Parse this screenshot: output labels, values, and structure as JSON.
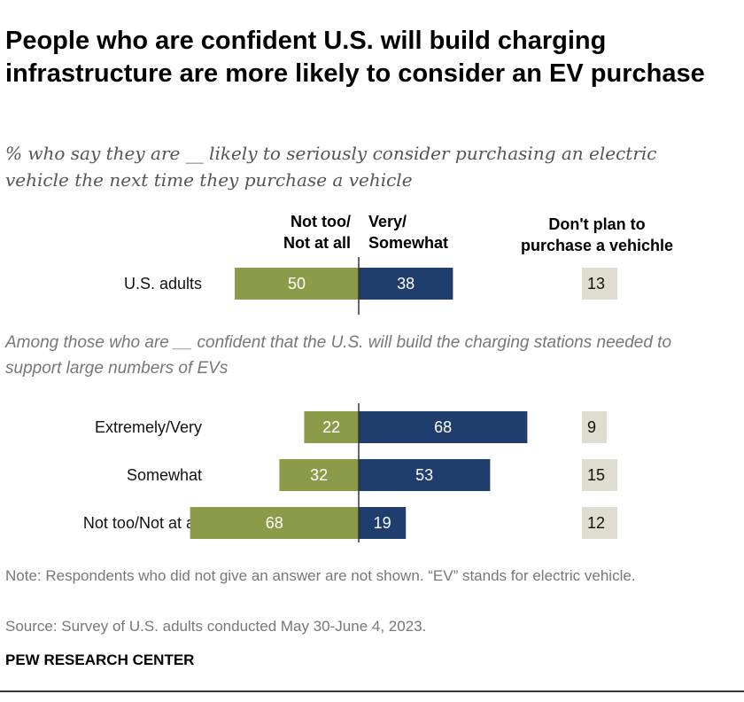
{
  "title": "People who are confident U.S. will build charging infrastructure are more likely to consider an EV purchase",
  "subtitle": "% who say they are __ likely to seriously consider purchasing an electric vehicle the next time they purchase a vehicle",
  "columns": {
    "left_line1": "Not too/",
    "left_line2": "Not at all",
    "right_line1": "Very/",
    "right_line2": "Somewhat",
    "np_line1": "Don't plan to",
    "np_line2": "purchase a vehichle"
  },
  "section_label": "Among those who are __ confident that the U.S. will build the charging stations needed to support large numbers of EVs",
  "note": "Note: Respondents who did not give an answer are not shown. “EV” stands for electric vehicle.",
  "source": "Source: Survey of U.S. adults conducted May 30-June 4, 2023.",
  "brand": "PEW RESEARCH CENTER",
  "colors": {
    "left": "#8c9b4a",
    "right": "#1f3e6e",
    "np": "#deddcf"
  },
  "chart_data": {
    "type": "bar",
    "orientation": "horizontal-diverging",
    "categories": [
      "U.S. adults",
      "Extremely/Very",
      "Somewhat",
      "Not too/Not at all"
    ],
    "series": [
      {
        "name": "Not too/ Not at all",
        "values": [
          50,
          22,
          32,
          68
        ]
      },
      {
        "name": "Very/ Somewhat",
        "values": [
          38,
          68,
          53,
          19
        ]
      },
      {
        "name": "Don't plan to purchase a vehichle",
        "values": [
          13,
          9,
          15,
          12
        ]
      }
    ]
  }
}
